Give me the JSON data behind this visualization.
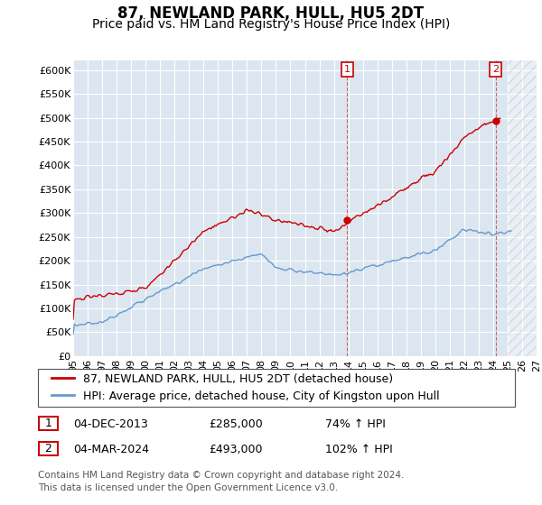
{
  "title": "87, NEWLAND PARK, HULL, HU5 2DT",
  "subtitle": "Price paid vs. HM Land Registry's House Price Index (HPI)",
  "ylim": [
    0,
    620000
  ],
  "yticks": [
    0,
    50000,
    100000,
    150000,
    200000,
    250000,
    300000,
    350000,
    400000,
    450000,
    500000,
    550000,
    600000
  ],
  "ytick_labels": [
    "£0",
    "£50K",
    "£100K",
    "£150K",
    "£200K",
    "£250K",
    "£300K",
    "£350K",
    "£400K",
    "£450K",
    "£500K",
    "£550K",
    "£600K"
  ],
  "xmin_year": 1995,
  "xmax_year": 2027,
  "xtick_years": [
    1995,
    1996,
    1997,
    1998,
    1999,
    2000,
    2001,
    2002,
    2003,
    2004,
    2005,
    2006,
    2007,
    2008,
    2009,
    2010,
    2011,
    2012,
    2013,
    2014,
    2015,
    2016,
    2017,
    2018,
    2019,
    2020,
    2021,
    2022,
    2023,
    2024,
    2025,
    2026,
    2027
  ],
  "xtick_labels": [
    "95",
    "96",
    "97",
    "98",
    "99",
    "00",
    "01",
    "02",
    "03",
    "04",
    "05",
    "06",
    "07",
    "08",
    "09",
    "10",
    "11",
    "12",
    "13",
    "14",
    "15",
    "16",
    "17",
    "18",
    "19",
    "20",
    "21",
    "22",
    "23",
    "24",
    "25",
    "26",
    "27"
  ],
  "sale1_x": 2013.92,
  "sale1_y": 285000,
  "sale1_label": "1",
  "sale2_x": 2024.17,
  "sale2_y": 493000,
  "sale2_label": "2",
  "line_property_color": "#cc0000",
  "line_hpi_color": "#6699cc",
  "plot_bg_color": "#dce6f1",
  "grid_color": "#ffffff",
  "hatch_start": 2025.0,
  "legend_label_property": "87, NEWLAND PARK, HULL, HU5 2DT (detached house)",
  "legend_label_hpi": "HPI: Average price, detached house, City of Kingston upon Hull",
  "footer1": "Contains HM Land Registry data © Crown copyright and database right 2024.",
  "footer2": "This data is licensed under the Open Government Licence v3.0.",
  "table_row1": [
    "1",
    "04-DEC-2013",
    "£285,000",
    "74% ↑ HPI"
  ],
  "table_row2": [
    "2",
    "04-MAR-2024",
    "£493,000",
    "102% ↑ HPI"
  ],
  "title_fontsize": 12,
  "subtitle_fontsize": 10,
  "tick_fontsize": 8,
  "legend_fontsize": 9
}
